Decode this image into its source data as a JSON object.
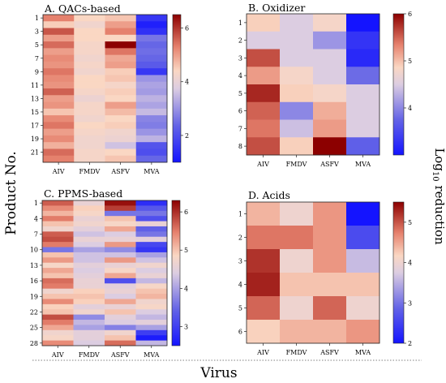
{
  "labels": {
    "ylabel": "Product No.",
    "xlabel": "Virus",
    "cbar_label": "Log",
    "cbar_sub": "10",
    "cbar_suffix": " reduction"
  },
  "chart_data": [
    {
      "type": "heatmap",
      "title": "A. QACs-based",
      "columns": [
        "AIV",
        "FMDV",
        "ASFV",
        "MVA"
      ],
      "row_count": 22,
      "row_tick_labels": [
        "1",
        "3",
        "5",
        "7",
        "9",
        "11",
        "13",
        "15",
        "17",
        "19",
        "21"
      ],
      "row_tick_rows": [
        1,
        3,
        5,
        7,
        9,
        11,
        13,
        15,
        17,
        19,
        21
      ],
      "colorbar": {
        "min": 1,
        "max": 6.5,
        "ticks": [
          2,
          4,
          6
        ]
      },
      "values": [
        [
          5.3,
          4.4,
          4.6,
          1.6
        ],
        [
          4.5,
          4.2,
          5.0,
          1.2
        ],
        [
          5.7,
          4.4,
          5.3,
          1.5
        ],
        [
          5.0,
          4.4,
          4.4,
          2.6
        ],
        [
          5.5,
          4.3,
          6.5,
          2.4
        ],
        [
          5.0,
          4.3,
          5.4,
          2.5
        ],
        [
          5.2,
          4.2,
          4.9,
          2.4
        ],
        [
          5.1,
          4.3,
          5.0,
          2.2
        ],
        [
          5.4,
          4.2,
          4.5,
          1.6
        ],
        [
          5.2,
          4.4,
          4.6,
          3.0
        ],
        [
          5.1,
          4.4,
          4.3,
          3.2
        ],
        [
          5.6,
          4.3,
          4.5,
          3.1
        ],
        [
          5.0,
          4.1,
          4.4,
          3.4
        ],
        [
          5.1,
          4.3,
          5.0,
          3.2
        ],
        [
          4.6,
          4.3,
          4.7,
          3.5
        ],
        [
          5.2,
          4.2,
          4.4,
          2.8
        ],
        [
          5.4,
          4.4,
          4.5,
          2.7
        ],
        [
          5.0,
          4.3,
          4.2,
          3.0
        ],
        [
          5.2,
          4.2,
          4.1,
          3.4
        ],
        [
          4.8,
          4.2,
          3.6,
          2.1
        ],
        [
          5.5,
          4.3,
          4.4,
          2.0
        ],
        [
          5.3,
          4.3,
          4.6,
          2.4
        ]
      ]
    },
    {
      "type": "heatmap",
      "title": "B. Oxidizer",
      "columns": [
        "AIV",
        "FMDV",
        "ASFV",
        "MVA"
      ],
      "row_count": 8,
      "row_tick_labels": [
        "1",
        "2",
        "3",
        "4",
        "5",
        "6",
        "7",
        "8"
      ],
      "row_tick_rows": [
        1,
        2,
        3,
        4,
        5,
        6,
        7,
        8
      ],
      "colorbar": {
        "min": 3,
        "max": 6,
        "ticks": [
          4,
          5,
          6
        ]
      },
      "values": [
        [
          4.9,
          4.5,
          4.8,
          3.0
        ],
        [
          4.5,
          4.5,
          4.1,
          3.3
        ],
        [
          5.6,
          4.5,
          4.5,
          3.2
        ],
        [
          5.2,
          4.8,
          4.5,
          3.8
        ],
        [
          5.8,
          4.9,
          4.8,
          4.5
        ],
        [
          5.5,
          4.0,
          5.1,
          4.5
        ],
        [
          5.4,
          4.4,
          5.2,
          4.5
        ],
        [
          5.6,
          4.9,
          6.0,
          3.7
        ]
      ]
    },
    {
      "type": "heatmap",
      "title": "C. PPMS-based",
      "columns": [
        "AIV",
        "FMDV",
        "ASFV",
        "MVA"
      ],
      "row_count": 28,
      "row_tick_labels": [
        "1",
        "4",
        "7",
        "10",
        "13",
        "16",
        "19",
        "22",
        "25",
        "28"
      ],
      "row_tick_rows": [
        1,
        4,
        7,
        10,
        13,
        16,
        19,
        22,
        25,
        28
      ],
      "colorbar": {
        "min": 2.5,
        "max": 6.3,
        "ticks": [
          3,
          4,
          5,
          6
        ]
      },
      "values": [
        [
          5.7,
          4.6,
          6.2,
          2.8
        ],
        [
          5.4,
          4.9,
          5.9,
          3.3
        ],
        [
          5.1,
          4.8,
          3.6,
          3.6
        ],
        [
          5.5,
          4.6,
          5.0,
          3.2
        ],
        [
          5.0,
          4.7,
          4.8,
          4.6
        ],
        [
          4.7,
          4.5,
          5.2,
          3.4
        ],
        [
          5.7,
          4.3,
          4.4,
          3.6
        ],
        [
          5.8,
          4.6,
          4.6,
          4.5
        ],
        [
          5.5,
          4.4,
          5.3,
          3.1
        ],
        [
          3.6,
          4.0,
          3.8,
          2.9
        ],
        [
          5.0,
          4.3,
          4.3,
          4.0
        ],
        [
          5.3,
          4.3,
          5.3,
          4.3
        ],
        [
          4.8,
          4.5,
          4.6,
          4.7
        ],
        [
          5.2,
          4.4,
          4.8,
          4.4
        ],
        [
          5.0,
          4.5,
          5.2,
          4.6
        ],
        [
          5.6,
          4.6,
          3.2,
          4.2
        ],
        [
          5.5,
          4.6,
          4.5,
          4.8
        ],
        [
          4.7,
          4.9,
          4.6,
          5.0
        ],
        [
          5.0,
          5.0,
          4.4,
          5.1
        ],
        [
          5.4,
          4.9,
          5.2,
          4.7
        ],
        [
          4.9,
          4.5,
          4.6,
          4.8
        ],
        [
          5.0,
          4.7,
          5.0,
          4.4
        ],
        [
          5.8,
          3.8,
          4.5,
          4.2
        ],
        [
          5.5,
          4.2,
          4.4,
          4.5
        ],
        [
          5.2,
          4.0,
          3.7,
          4.0
        ],
        [
          4.7,
          4.5,
          4.7,
          3.0
        ],
        [
          4.8,
          4.5,
          5.0,
          2.6
        ],
        [
          5.4,
          4.4,
          5.6,
          4.2
        ]
      ]
    },
    {
      "type": "heatmap",
      "title": "D. Acids",
      "columns": [
        "AIV",
        "FMDV",
        "ASFV",
        "MVA"
      ],
      "row_count": 6,
      "row_tick_labels": [
        "1",
        "2",
        "3",
        "4",
        "5",
        "6"
      ],
      "row_tick_rows": [
        1,
        2,
        3,
        4,
        5,
        6
      ],
      "colorbar": {
        "min": 2,
        "max": 5.5,
        "ticks": [
          2,
          3,
          4,
          5
        ]
      },
      "values": [
        [
          4.4,
          4.0,
          4.6,
          2.0
        ],
        [
          4.8,
          4.8,
          4.6,
          2.6
        ],
        [
          5.2,
          4.0,
          4.6,
          3.6
        ],
        [
          5.3,
          4.3,
          4.3,
          4.3
        ],
        [
          4.9,
          4.0,
          4.9,
          4.0
        ],
        [
          4.2,
          4.4,
          4.4,
          4.6
        ]
      ]
    }
  ]
}
